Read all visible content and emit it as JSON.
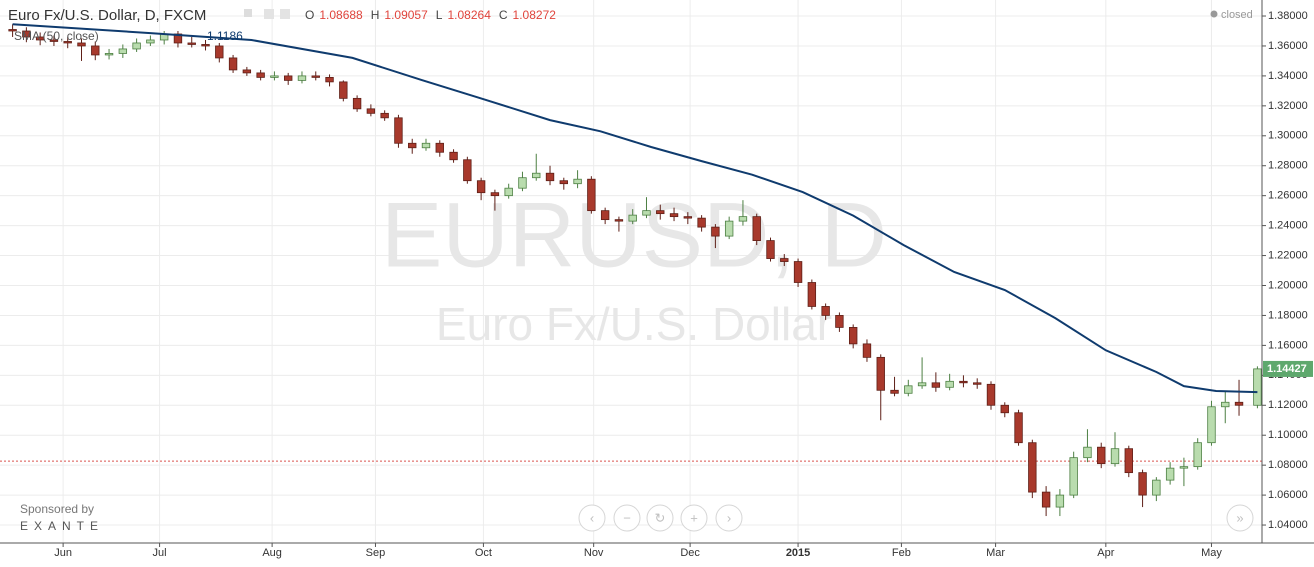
{
  "chart_data": {
    "type": "candlestick",
    "title": "Euro Fx/U.S. Dollar, D, FXCM",
    "ohlc_labels": [
      "O",
      "H",
      "L",
      "C"
    ],
    "ohlc_values": [
      1.08688,
      1.09057,
      1.08264,
      1.08272
    ],
    "status": "closed",
    "indicator": {
      "name": "SMA (50, close)",
      "value": 1.1186,
      "color": "#0f3b6e",
      "x": [
        0,
        30,
        52,
        74,
        89,
        102,
        117,
        128,
        139,
        150,
        161,
        172,
        183,
        194,
        205,
        216,
        227,
        238,
        249,
        255,
        262,
        271
      ],
      "values": [
        1.3745,
        1.3686,
        1.364,
        1.352,
        1.3373,
        1.325,
        1.3105,
        1.303,
        1.2925,
        1.2831,
        1.274,
        1.2624,
        1.2467,
        1.227,
        1.209,
        1.197,
        1.1782,
        1.1567,
        1.1422,
        1.1328,
        1.1295,
        1.1288
      ]
    },
    "watermark": [
      "EURUSD, D",
      "Euro Fx/U.S. Dollar"
    ],
    "sponsor": [
      "Sponsored by",
      "EXANTE"
    ],
    "last_price": 1.14427,
    "last_price_color": "#5ea86d",
    "up_color": "#b9dcae",
    "down_color": "#a8392c",
    "up_edge": "#4c7f42",
    "down_edge": "#5e1f17",
    "price_line_color": "#d9534f",
    "grid": true,
    "xlim": [
      -1,
      272
    ],
    "ylim": [
      1.028,
      1.3907
    ],
    "yticks": [
      {
        "value": 1.38,
        "label": "1.38000"
      },
      {
        "value": 1.36,
        "label": "1.36000"
      },
      {
        "value": 1.34,
        "label": "1.34000"
      },
      {
        "value": 1.32,
        "label": "1.32000"
      },
      {
        "value": 1.3,
        "label": "1.30000"
      },
      {
        "value": 1.28,
        "label": "1.28000"
      },
      {
        "value": 1.26,
        "label": "1.26000"
      },
      {
        "value": 1.24,
        "label": "1.24000"
      },
      {
        "value": 1.22,
        "label": "1.22000"
      },
      {
        "value": 1.2,
        "label": "1.20000"
      },
      {
        "value": 1.18,
        "label": "1.18000"
      },
      {
        "value": 1.16,
        "label": "1.16000"
      },
      {
        "value": 1.14,
        "label": "1.14000"
      },
      {
        "value": 1.12,
        "label": "1.12000"
      },
      {
        "value": 1.1,
        "label": "1.10000"
      },
      {
        "value": 1.08,
        "label": "1.08000"
      },
      {
        "value": 1.06,
        "label": "1.06000"
      },
      {
        "value": 1.04,
        "label": "1.04000"
      }
    ],
    "xticks": [
      {
        "value": 11,
        "label": "Jun"
      },
      {
        "value": 32,
        "label": "Jul"
      },
      {
        "value": 56.5,
        "label": "Aug"
      },
      {
        "value": 79,
        "label": "Sep"
      },
      {
        "value": 102.5,
        "label": "Oct"
      },
      {
        "value": 126.5,
        "label": "Nov"
      },
      {
        "value": 147.5,
        "label": "Dec"
      },
      {
        "value": 171,
        "label": "2015"
      },
      {
        "value": 193.5,
        "label": "Feb"
      },
      {
        "value": 214,
        "label": "Mar"
      },
      {
        "value": 238,
        "label": "Apr"
      },
      {
        "value": 261,
        "label": "May"
      }
    ],
    "x": [
      0,
      3,
      6,
      9,
      12,
      15,
      18,
      21,
      24,
      27,
      30,
      33,
      36,
      39,
      42,
      45,
      48,
      51,
      54,
      57,
      60,
      63,
      66,
      69,
      72,
      75,
      78,
      81,
      84,
      87,
      90,
      93,
      96,
      99,
      102,
      105,
      108,
      111,
      114,
      117,
      120,
      123,
      126,
      129,
      132,
      135,
      138,
      141,
      144,
      147,
      150,
      153,
      156,
      159,
      162,
      165,
      168,
      171,
      174,
      177,
      180,
      183,
      186,
      189,
      192,
      195,
      198,
      201,
      204,
      207,
      210,
      213,
      216,
      219,
      222,
      225,
      228,
      231,
      234,
      237,
      240,
      243,
      246,
      249,
      252,
      255,
      258,
      261,
      264,
      267,
      271
    ],
    "candles": [
      [
        1.371,
        1.3745,
        1.366,
        1.37
      ],
      [
        1.37,
        1.3725,
        1.3625,
        1.366
      ],
      [
        1.366,
        1.369,
        1.3605,
        1.364
      ],
      [
        1.364,
        1.367,
        1.36,
        1.363
      ],
      [
        1.363,
        1.366,
        1.3585,
        1.362
      ],
      [
        1.362,
        1.365,
        1.35,
        1.36
      ],
      [
        1.36,
        1.363,
        1.3505,
        1.354
      ],
      [
        1.354,
        1.358,
        1.351,
        1.355
      ],
      [
        1.355,
        1.361,
        1.352,
        1.358
      ],
      [
        1.358,
        1.365,
        1.356,
        1.362
      ],
      [
        1.362,
        1.367,
        1.36,
        1.364
      ],
      [
        1.364,
        1.37,
        1.361,
        1.368
      ],
      [
        1.368,
        1.37,
        1.359,
        1.362
      ],
      [
        1.362,
        1.366,
        1.359,
        1.361
      ],
      [
        1.361,
        1.364,
        1.357,
        1.36
      ],
      [
        1.36,
        1.362,
        1.349,
        1.352
      ],
      [
        1.352,
        1.354,
        1.342,
        1.344
      ],
      [
        1.344,
        1.346,
        1.34,
        1.342
      ],
      [
        1.342,
        1.344,
        1.337,
        1.339
      ],
      [
        1.339,
        1.343,
        1.337,
        1.34
      ],
      [
        1.34,
        1.342,
        1.334,
        1.337
      ],
      [
        1.337,
        1.343,
        1.335,
        1.34
      ],
      [
        1.34,
        1.343,
        1.337,
        1.339
      ],
      [
        1.339,
        1.341,
        1.333,
        1.336
      ],
      [
        1.336,
        1.337,
        1.323,
        1.325
      ],
      [
        1.325,
        1.327,
        1.316,
        1.318
      ],
      [
        1.318,
        1.321,
        1.313,
        1.315
      ],
      [
        1.315,
        1.317,
        1.31,
        1.312
      ],
      [
        1.312,
        1.314,
        1.292,
        1.295
      ],
      [
        1.295,
        1.298,
        1.288,
        1.292
      ],
      [
        1.292,
        1.298,
        1.29,
        1.295
      ],
      [
        1.295,
        1.297,
        1.286,
        1.289
      ],
      [
        1.289,
        1.291,
        1.282,
        1.284
      ],
      [
        1.284,
        1.286,
        1.268,
        1.27
      ],
      [
        1.27,
        1.272,
        1.257,
        1.262
      ],
      [
        1.262,
        1.264,
        1.25,
        1.26
      ],
      [
        1.26,
        1.268,
        1.258,
        1.265
      ],
      [
        1.265,
        1.276,
        1.263,
        1.272
      ],
      [
        1.272,
        1.288,
        1.27,
        1.275
      ],
      [
        1.275,
        1.28,
        1.267,
        1.27
      ],
      [
        1.27,
        1.272,
        1.264,
        1.268
      ],
      [
        1.268,
        1.277,
        1.265,
        1.271
      ],
      [
        1.271,
        1.273,
        1.248,
        1.25
      ],
      [
        1.25,
        1.252,
        1.241,
        1.244
      ],
      [
        1.244,
        1.246,
        1.236,
        1.243
      ],
      [
        1.243,
        1.251,
        1.241,
        1.247
      ],
      [
        1.247,
        1.259,
        1.245,
        1.25
      ],
      [
        1.25,
        1.254,
        1.244,
        1.248
      ],
      [
        1.248,
        1.252,
        1.243,
        1.246
      ],
      [
        1.246,
        1.249,
        1.241,
        1.245
      ],
      [
        1.245,
        1.247,
        1.236,
        1.239
      ],
      [
        1.239,
        1.241,
        1.225,
        1.233
      ],
      [
        1.233,
        1.246,
        1.231,
        1.243
      ],
      [
        1.243,
        1.257,
        1.24,
        1.246
      ],
      [
        1.246,
        1.248,
        1.227,
        1.23
      ],
      [
        1.23,
        1.232,
        1.216,
        1.218
      ],
      [
        1.218,
        1.221,
        1.213,
        1.216
      ],
      [
        1.216,
        1.218,
        1.199,
        1.202
      ],
      [
        1.202,
        1.204,
        1.184,
        1.186
      ],
      [
        1.186,
        1.188,
        1.177,
        1.18
      ],
      [
        1.18,
        1.182,
        1.169,
        1.172
      ],
      [
        1.172,
        1.174,
        1.158,
        1.161
      ],
      [
        1.161,
        1.164,
        1.149,
        1.152
      ],
      [
        1.152,
        1.154,
        1.11,
        1.13
      ],
      [
        1.13,
        1.139,
        1.126,
        1.128
      ],
      [
        1.128,
        1.137,
        1.126,
        1.133
      ],
      [
        1.133,
        1.152,
        1.131,
        1.135
      ],
      [
        1.135,
        1.142,
        1.129,
        1.132
      ],
      [
        1.132,
        1.141,
        1.13,
        1.136
      ],
      [
        1.136,
        1.14,
        1.132,
        1.135
      ],
      [
        1.135,
        1.138,
        1.131,
        1.134
      ],
      [
        1.134,
        1.136,
        1.117,
        1.12
      ],
      [
        1.12,
        1.122,
        1.112,
        1.115
      ],
      [
        1.115,
        1.117,
        1.093,
        1.095
      ],
      [
        1.095,
        1.097,
        1.058,
        1.062
      ],
      [
        1.062,
        1.066,
        1.046,
        1.052
      ],
      [
        1.052,
        1.064,
        1.046,
        1.06
      ],
      [
        1.06,
        1.089,
        1.058,
        1.085
      ],
      [
        1.085,
        1.104,
        1.082,
        1.092
      ],
      [
        1.092,
        1.095,
        1.078,
        1.081
      ],
      [
        1.081,
        1.102,
        1.079,
        1.091
      ],
      [
        1.091,
        1.093,
        1.072,
        1.075
      ],
      [
        1.075,
        1.077,
        1.052,
        1.06
      ],
      [
        1.06,
        1.072,
        1.056,
        1.07
      ],
      [
        1.07,
        1.082,
        1.067,
        1.078
      ],
      [
        1.078,
        1.085,
        1.066,
        1.079
      ],
      [
        1.079,
        1.098,
        1.077,
        1.095
      ],
      [
        1.095,
        1.123,
        1.093,
        1.119
      ],
      [
        1.119,
        1.129,
        1.108,
        1.122
      ],
      [
        1.122,
        1.137,
        1.113,
        1.12
      ],
      [
        1.12,
        1.146,
        1.118,
        1.1443
      ]
    ]
  }
}
